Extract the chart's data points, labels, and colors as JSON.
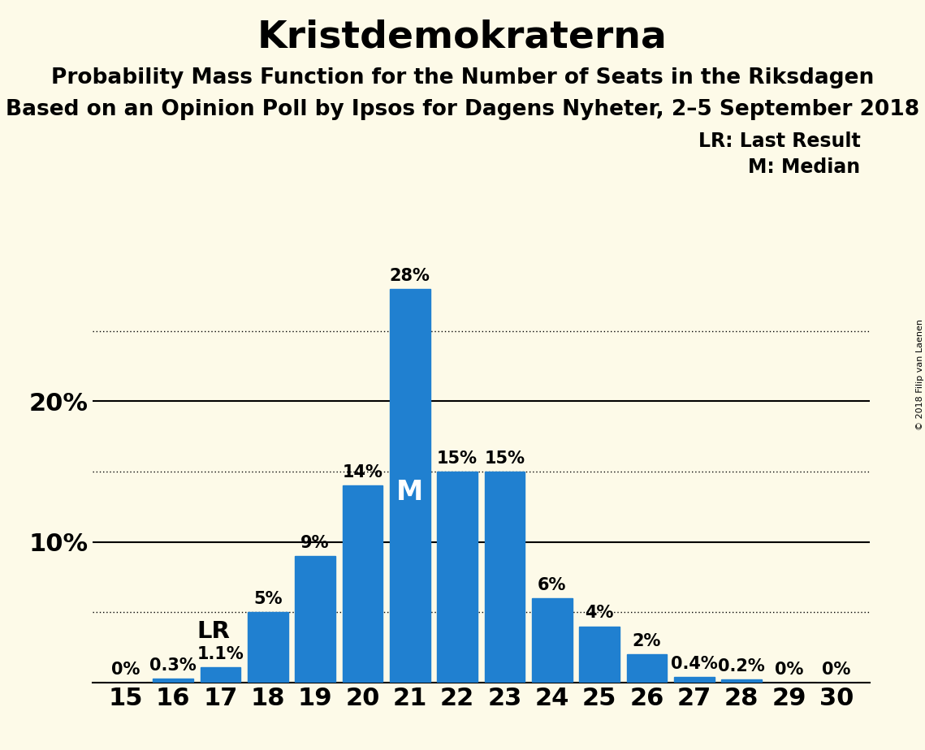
{
  "title": "Kristdemokraterna",
  "subtitle1": "Probability Mass Function for the Number of Seats in the Riksdagen",
  "subtitle2": "Based on an Opinion Poll by Ipsos for Dagens Nyheter, 2–5 September 2018",
  "copyright": "© 2018 Filip van Laenen",
  "seats": [
    15,
    16,
    17,
    18,
    19,
    20,
    21,
    22,
    23,
    24,
    25,
    26,
    27,
    28,
    29,
    30
  ],
  "probabilities": [
    0.0,
    0.3,
    1.1,
    5.0,
    9.0,
    14.0,
    28.0,
    15.0,
    15.0,
    6.0,
    4.0,
    2.0,
    0.4,
    0.2,
    0.0,
    0.0
  ],
  "bar_color": "#2080D0",
  "background_color": "#FDFAE8",
  "LR_seat": 16,
  "median_seat": 21,
  "legend_LR": "LR: Last Result",
  "legend_M": "M: Median",
  "dotted_yticks": [
    5,
    15,
    25
  ],
  "solid_yticks": [
    10,
    20
  ],
  "title_fontsize": 34,
  "subtitle_fontsize": 19,
  "bar_label_fontsize": 15,
  "axis_tick_fontsize": 22,
  "legend_fontsize": 17,
  "ymax": 32
}
